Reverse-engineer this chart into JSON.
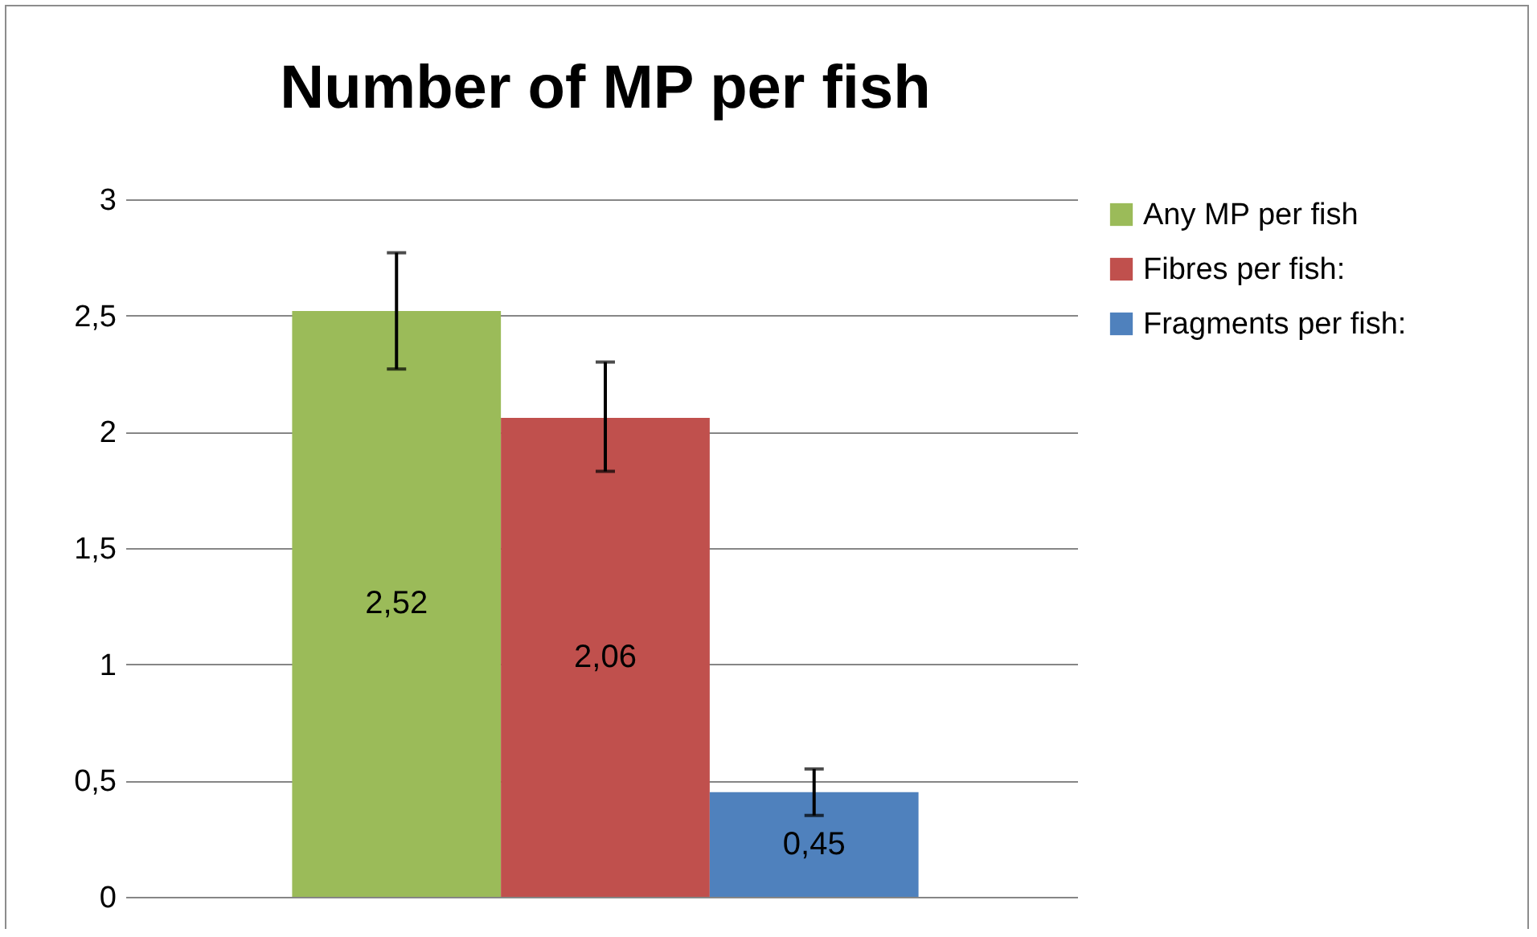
{
  "chart_data": {
    "type": "bar",
    "title": "Number of MP per fish",
    "categories": [
      null
    ],
    "series": [
      {
        "name": "Any MP per fish",
        "color": "#9bbb59",
        "values": [
          2.52
        ],
        "errors": [
          [
            2.27,
            2.77
          ]
        ],
        "value_labels": [
          "2,52"
        ]
      },
      {
        "name": "Fibres per fish:",
        "color": "#c0504d",
        "values": [
          2.06
        ],
        "errors": [
          [
            1.83,
            2.3
          ]
        ],
        "value_labels": [
          "2,06"
        ]
      },
      {
        "name": "Fragments per fish:",
        "color": "#4f81bd",
        "values": [
          0.45
        ],
        "errors": [
          [
            0.35,
            0.55
          ]
        ],
        "value_labels": [
          "0,45"
        ]
      }
    ],
    "ylim": [
      0,
      3
    ],
    "yticks": [
      {
        "value": 0,
        "label": "0"
      },
      {
        "value": 0.5,
        "label": "0,5"
      },
      {
        "value": 1,
        "label": "1"
      },
      {
        "value": 1.5,
        "label": "1,5"
      },
      {
        "value": 2,
        "label": "2"
      },
      {
        "value": 2.5,
        "label": "2,5"
      },
      {
        "value": 3,
        "label": "3"
      }
    ],
    "grid": "y",
    "legend": "right"
  }
}
